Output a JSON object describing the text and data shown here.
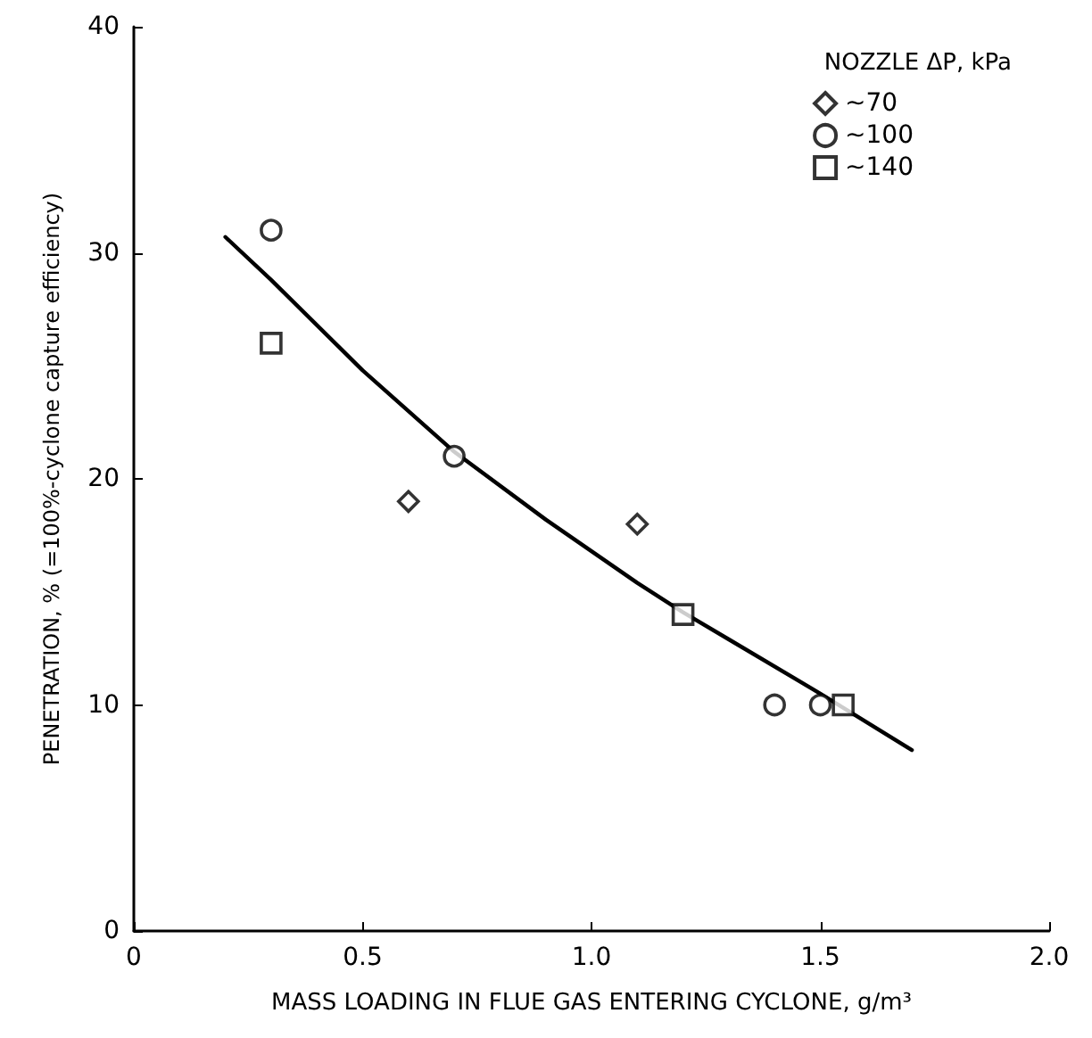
{
  "chart_data": {
    "type": "scatter",
    "xlabel": "MASS LOADING IN FLUE GAS ENTERING CYCLONE, g/m³",
    "ylabel": "PENETRATION, % (=100%-cyclone capture efficiency)",
    "legend_title": "NOZZLE ΔP, kPa",
    "legend": "top right",
    "grid": false,
    "xlim": [
      0,
      2
    ],
    "xticks": [
      0,
      0.5,
      {
        "value": 1,
        "label": "1.0"
      },
      1.5,
      {
        "value": 2,
        "label": "2.0"
      }
    ],
    "ylim": [
      0,
      40
    ],
    "yticks": [
      0,
      10,
      20,
      30,
      40
    ],
    "series": [
      {
        "name": "~70",
        "color": "#000000",
        "marker": "diamond",
        "x": [
          0.6,
          1.1
        ],
        "values": [
          19,
          18
        ]
      },
      {
        "name": "~100",
        "color": "#000000",
        "marker": "circle",
        "x": [
          0.3,
          0.7,
          1.4,
          1.5
        ],
        "values": [
          31,
          21,
          10,
          10
        ]
      },
      {
        "name": "~140",
        "color": "#000000",
        "marker": "square",
        "x": [
          0.3,
          1.2,
          1.55
        ],
        "values": [
          26,
          14,
          10
        ]
      },
      {
        "type": "line",
        "color": "#000000",
        "marker": "none",
        "line_style": "solid",
        "x": [
          0.2,
          0.3,
          0.5,
          0.7,
          0.9,
          1.1,
          1.2,
          1.3,
          1.5,
          1.7
        ],
        "values": [
          30.7,
          28.8,
          24.8,
          21.2,
          18.2,
          15.4,
          14.1,
          12.9,
          10.5,
          8
        ]
      }
    ]
  }
}
